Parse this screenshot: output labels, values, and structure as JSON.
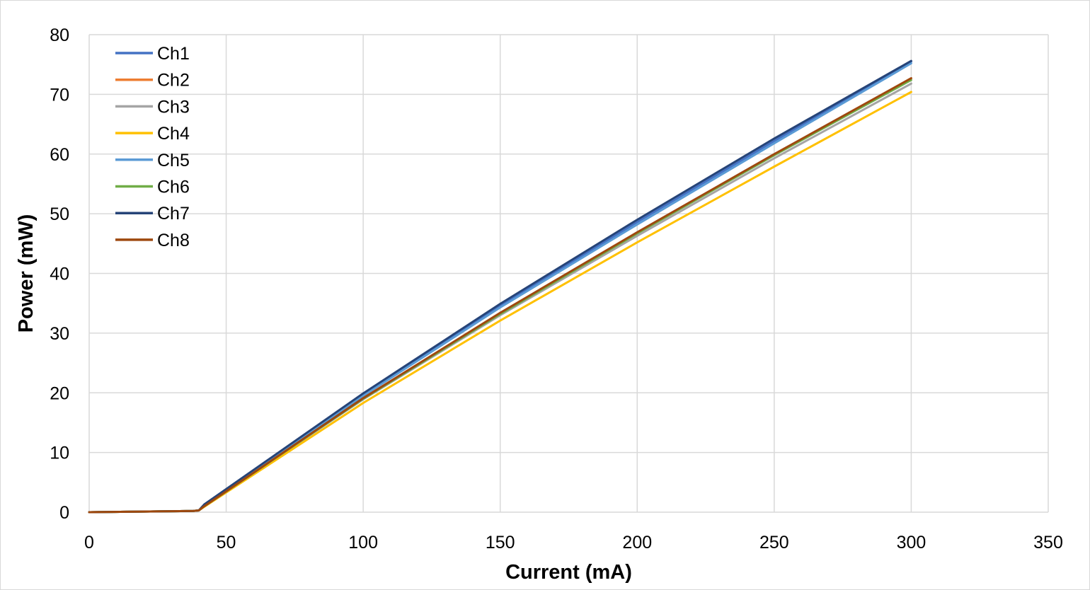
{
  "chart_data": {
    "type": "line",
    "title": "",
    "xlabel": "Current (mA)",
    "ylabel": "Power (mW)",
    "xlim": [
      0,
      350
    ],
    "ylim": [
      0,
      80
    ],
    "xticks": [
      0,
      50,
      100,
      150,
      200,
      250,
      300,
      350
    ],
    "yticks": [
      0,
      10,
      20,
      30,
      40,
      50,
      60,
      70,
      80
    ],
    "grid": true,
    "legend_position": "top-left",
    "series": [
      {
        "name": "Ch1",
        "color": "#4472C4",
        "x": [
          0,
          38,
          40,
          42,
          100,
          150,
          200,
          250,
          300
        ],
        "y": [
          0,
          0.2,
          0.3,
          1.2,
          19.6,
          34.6,
          48.6,
          62.2,
          75.5
        ]
      },
      {
        "name": "Ch2",
        "color": "#ED7D31",
        "x": [
          0,
          38,
          40,
          42,
          100,
          150,
          200,
          250,
          300
        ],
        "y": [
          0,
          0.2,
          0.3,
          1.0,
          19.0,
          33.3,
          46.8,
          59.9,
          72.7
        ]
      },
      {
        "name": "Ch3",
        "color": "#A5A5A5",
        "x": [
          0,
          38,
          40,
          42,
          100,
          150,
          200,
          250,
          300
        ],
        "y": [
          0,
          0.2,
          0.3,
          1.0,
          18.9,
          33.0,
          46.3,
          59.3,
          71.8
        ]
      },
      {
        "name": "Ch4",
        "color": "#FFC000",
        "x": [
          0,
          38,
          40,
          42,
          100,
          150,
          200,
          250,
          300
        ],
        "y": [
          0,
          0.2,
          0.3,
          0.9,
          18.3,
          32.1,
          45.2,
          57.9,
          70.4
        ]
      },
      {
        "name": "Ch5",
        "color": "#5B9BD5",
        "x": [
          0,
          38,
          40,
          42,
          100,
          150,
          200,
          250,
          300
        ],
        "y": [
          0,
          0.2,
          0.3,
          1.2,
          19.5,
          34.3,
          48.2,
          61.8,
          75.2
        ]
      },
      {
        "name": "Ch6",
        "color": "#70AD47",
        "x": [
          0,
          38,
          40,
          42,
          100,
          150,
          200,
          250,
          300
        ],
        "y": [
          0,
          0.2,
          0.3,
          1.0,
          19.0,
          33.2,
          46.7,
          59.8,
          72.4
        ]
      },
      {
        "name": "Ch7",
        "color": "#264478",
        "x": [
          0,
          38,
          40,
          42,
          100,
          150,
          200,
          250,
          300
        ],
        "y": [
          0,
          0.2,
          0.3,
          1.3,
          19.9,
          34.9,
          49.0,
          62.6,
          75.6
        ]
      },
      {
        "name": "Ch8",
        "color": "#9E480E",
        "x": [
          0,
          38,
          40,
          42,
          100,
          150,
          200,
          250,
          300
        ],
        "y": [
          0,
          0.2,
          0.3,
          1.0,
          19.1,
          33.4,
          46.9,
          60.0,
          72.7
        ]
      }
    ]
  }
}
